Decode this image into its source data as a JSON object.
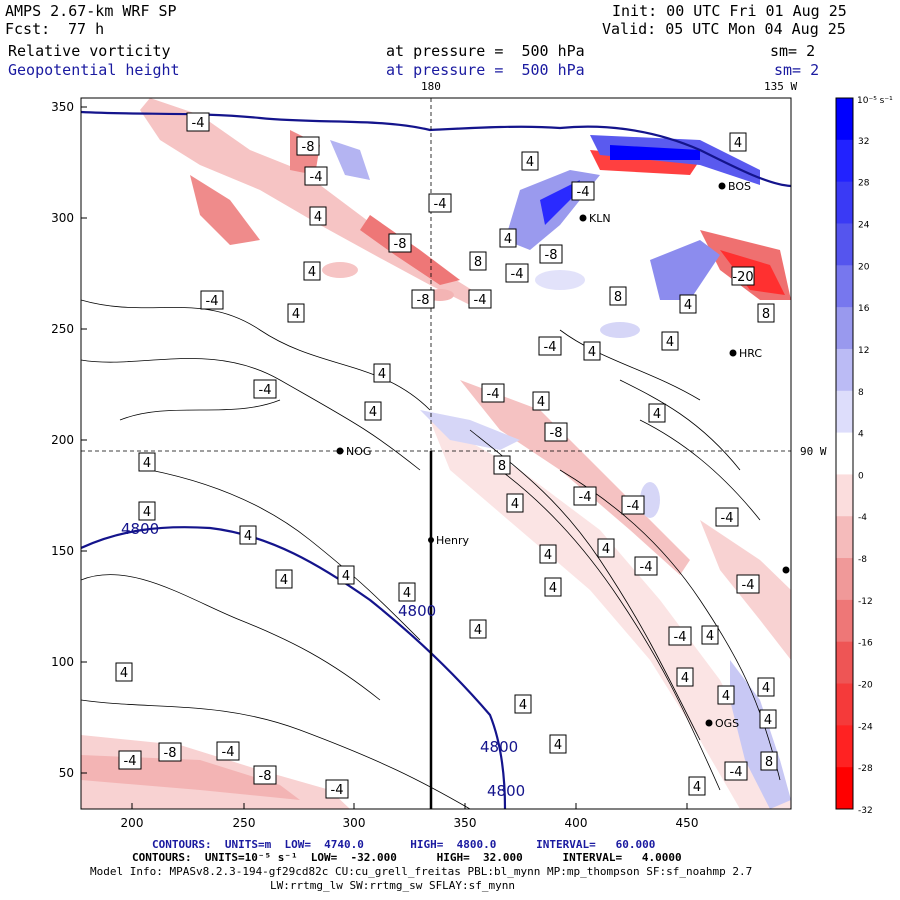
{
  "header": {
    "model": "AMPS 2.67-km WRF SP",
    "forecast_label": "Fcst:",
    "forecast_value": "77 h",
    "init": "Init: 00 UTC Fri 01 Aug 25",
    "valid": "Valid: 05 UTC Mon 04 Aug 25",
    "field1": {
      "name": "Relative vorticity",
      "level": "at pressure =  500 hPa",
      "sm": "sm= 2"
    },
    "field2": {
      "name": "Geopotential height",
      "level": "at pressure =  500 hPa",
      "sm": "sm= 2"
    }
  },
  "map": {
    "meridian_180": "180",
    "meridian_135w": "135 W",
    "parallel_90w": "90 W",
    "x_ticks": [
      "200",
      "250",
      "300",
      "350",
      "400",
      "450"
    ],
    "y_ticks": [
      "350",
      "300",
      "250",
      "200",
      "150",
      "100",
      "50"
    ],
    "stations": [
      "Henry",
      "NOG",
      "HRC",
      "KLN",
      "BOS",
      "OGS"
    ],
    "height_contour_label": "4800",
    "vorticity_labels": [
      "4",
      "-4",
      "8",
      "-8",
      "-20"
    ]
  },
  "colorbar": {
    "unit": "10⁻⁵ s⁻¹",
    "labels": [
      "32",
      "28",
      "24",
      "20",
      "16",
      "12",
      "8",
      "4",
      "0",
      "-4",
      "-8",
      "-12",
      "-16",
      "-20",
      "-24",
      "-28",
      "-32"
    ],
    "colors": [
      "#0000ff",
      "#2222ff",
      "#3a3af5",
      "#5555ee",
      "#7777ee",
      "#9999ee",
      "#bbbbf5",
      "#ddddfb",
      "#ffffff",
      "#fbdddd",
      "#f5bbbb",
      "#f09999",
      "#ee7777",
      "#ee5555",
      "#f53a3a",
      "#ff2222",
      "#ff0000"
    ]
  },
  "footer": {
    "line1": "CONTOURS:  UNITS=m  LOW=  4740.0       HIGH=  4800.0      INTERVAL=   60.000",
    "line2": "CONTOURS:  UNITS=10⁻⁵ s⁻¹  LOW=  -32.000      HIGH=  32.000      INTERVAL=   4.0000",
    "line3": "Model Info: MPASv8.2.3-194-gf29cd82c CU:cu_grell_freitas PBL:bl_mynn MP:mp_thompson SF:sf_noahmp 2.7",
    "line4": "LW:rrtmg_lw SW:rrtmg_sw SFLAY:sf_mynn"
  }
}
